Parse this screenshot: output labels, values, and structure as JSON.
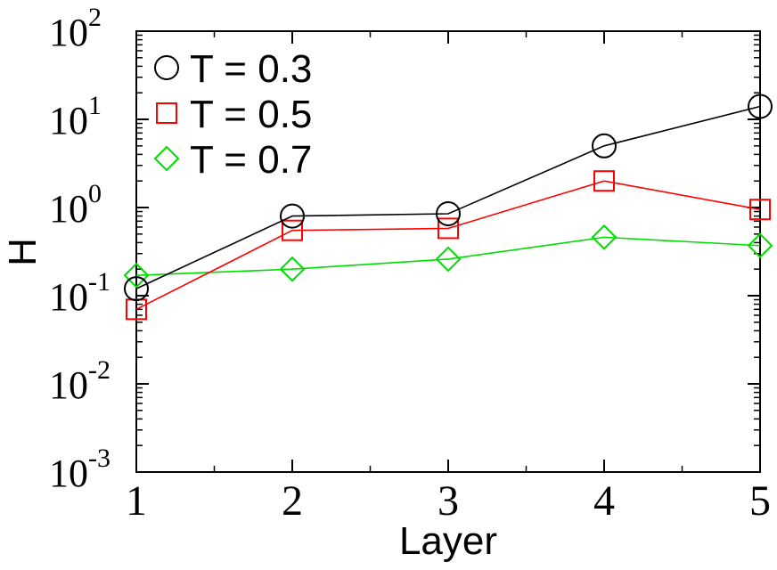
{
  "chart_data": {
    "type": "line",
    "title": "",
    "xlabel": "Layer",
    "ylabel": "H",
    "y_scale": "log",
    "xlim": [
      1,
      5
    ],
    "ylim": [
      0.001,
      100
    ],
    "x_ticks": [
      1,
      2,
      3,
      4,
      5
    ],
    "y_tick_base": "10",
    "y_tick_exponents": [
      "-3",
      "-2",
      "-1",
      "0",
      "1",
      "2"
    ],
    "grid": false,
    "legend_position": "top-left",
    "x": [
      1,
      2,
      3,
      4,
      5
    ],
    "series": [
      {
        "name": "T = 0.3",
        "color": "#000000",
        "marker": "circle",
        "values": [
          0.12,
          0.8,
          0.85,
          5.0,
          14.0
        ]
      },
      {
        "name": "T = 0.5",
        "color": "#ff0000",
        "marker": "square",
        "values": [
          0.07,
          0.55,
          0.58,
          2.0,
          0.95
        ]
      },
      {
        "name": "T = 0.7",
        "color": "#00dd00",
        "marker": "diamond",
        "values": [
          0.17,
          0.2,
          0.26,
          0.46,
          0.37
        ]
      }
    ]
  }
}
